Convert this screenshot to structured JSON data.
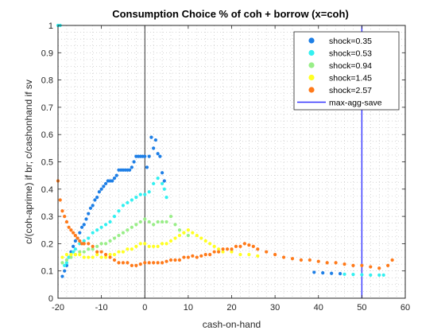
{
  "chart_data": {
    "type": "scatter",
    "title": "Consumption Choice % of coh + borrow (x=coh)",
    "xlabel": "cash-on-hand",
    "ylabel": "c/(coh-aprime) if br; c/cashonhand if sv",
    "xlim": [
      -20,
      60
    ],
    "ylim": [
      0,
      1
    ],
    "xticks": [
      "-20",
      "-10",
      "0",
      "10",
      "20",
      "30",
      "40",
      "50",
      "60"
    ],
    "yticks": [
      "0",
      "0.1",
      "0.2",
      "0.3",
      "0.4",
      "0.5",
      "0.6",
      "0.7",
      "0.8",
      "0.9",
      "1"
    ],
    "grid": "minor dotted",
    "legend_position": "top-right",
    "vertical_lines": [
      {
        "x": 0,
        "color": "#000000",
        "label": ""
      },
      {
        "x": 50,
        "color": "#3333ff",
        "label": "max-agg-save"
      }
    ],
    "series": [
      {
        "name": "shock=0.35",
        "color": "#1e7fe6",
        "points": [
          [
            -19.0,
            0.08
          ],
          [
            -18.5,
            0.1
          ],
          [
            -18.0,
            0.12
          ],
          [
            -17.5,
            0.15
          ],
          [
            -17.0,
            0.17
          ],
          [
            -16.5,
            0.19
          ],
          [
            -16.0,
            0.21
          ],
          [
            -15.5,
            0.22
          ],
          [
            -15.0,
            0.24
          ],
          [
            -14.5,
            0.26
          ],
          [
            -14.0,
            0.27
          ],
          [
            -13.5,
            0.29
          ],
          [
            -13.0,
            0.31
          ],
          [
            -12.5,
            0.33
          ],
          [
            -12.0,
            0.34
          ],
          [
            -11.5,
            0.36
          ],
          [
            -11.0,
            0.37
          ],
          [
            -10.5,
            0.39
          ],
          [
            -10.0,
            0.4
          ],
          [
            -9.5,
            0.41
          ],
          [
            -9.0,
            0.42
          ],
          [
            -8.5,
            0.43
          ],
          [
            -8.0,
            0.43
          ],
          [
            -7.5,
            0.43
          ],
          [
            -7.0,
            0.44
          ],
          [
            -6.5,
            0.45
          ],
          [
            -6.0,
            0.47
          ],
          [
            -5.5,
            0.47
          ],
          [
            -5.0,
            0.47
          ],
          [
            -4.5,
            0.47
          ],
          [
            -4.0,
            0.47
          ],
          [
            -3.5,
            0.47
          ],
          [
            -3.0,
            0.48
          ],
          [
            -2.5,
            0.5
          ],
          [
            -2.0,
            0.52
          ],
          [
            -1.5,
            0.52
          ],
          [
            -1.0,
            0.52
          ],
          [
            -0.5,
            0.52
          ],
          [
            0.0,
            0.52
          ],
          [
            0.5,
            0.48
          ],
          [
            1.0,
            0.52
          ],
          [
            1.5,
            0.59
          ],
          [
            2.0,
            0.55
          ],
          [
            2.5,
            0.58
          ],
          [
            3.0,
            0.53
          ],
          [
            3.5,
            0.52
          ],
          [
            4.0,
            0.46
          ],
          [
            4.5,
            0.43
          ],
          [
            39.0,
            0.095
          ],
          [
            41.0,
            0.093
          ],
          [
            43.0,
            0.091
          ],
          [
            45.0,
            0.09
          ]
        ]
      },
      {
        "name": "shock=0.53",
        "color": "#33f0f0",
        "points": [
          [
            -20.0,
            1.0
          ],
          [
            -19.5,
            1.0
          ],
          [
            -18.5,
            0.12
          ],
          [
            -18.0,
            0.13
          ],
          [
            -17.5,
            0.15
          ],
          [
            -17.0,
            0.16
          ],
          [
            -16.5,
            0.17
          ],
          [
            -16.0,
            0.18
          ],
          [
            -15.0,
            0.2
          ],
          [
            -14.0,
            0.21
          ],
          [
            -13.0,
            0.22
          ],
          [
            -12.0,
            0.24
          ],
          [
            -11.0,
            0.25
          ],
          [
            -10.0,
            0.26
          ],
          [
            -9.0,
            0.27
          ],
          [
            -8.0,
            0.28
          ],
          [
            -7.0,
            0.3
          ],
          [
            -6.0,
            0.32
          ],
          [
            -5.0,
            0.34
          ],
          [
            -4.0,
            0.35
          ],
          [
            -3.0,
            0.36
          ],
          [
            -2.0,
            0.37
          ],
          [
            -1.0,
            0.38
          ],
          [
            0.0,
            0.38
          ],
          [
            1.0,
            0.39
          ],
          [
            2.0,
            0.42
          ],
          [
            3.0,
            0.44
          ],
          [
            4.0,
            0.42
          ],
          [
            4.5,
            0.4
          ],
          [
            5.0,
            0.37
          ],
          [
            46.0,
            0.088
          ],
          [
            48.0,
            0.087
          ],
          [
            50.0,
            0.086
          ],
          [
            52.0,
            0.085
          ],
          [
            54.0,
            0.085
          ],
          [
            55.0,
            0.085
          ]
        ]
      },
      {
        "name": "shock=0.94",
        "color": "#99ee88",
        "points": [
          [
            -19.0,
            0.13
          ],
          [
            -18.0,
            0.14
          ],
          [
            -17.0,
            0.15
          ],
          [
            -16.0,
            0.16
          ],
          [
            -15.0,
            0.17
          ],
          [
            -14.0,
            0.17
          ],
          [
            -13.0,
            0.18
          ],
          [
            -12.0,
            0.18
          ],
          [
            -11.0,
            0.19
          ],
          [
            -10.0,
            0.2
          ],
          [
            -9.0,
            0.2
          ],
          [
            -8.0,
            0.21
          ],
          [
            -7.0,
            0.22
          ],
          [
            -6.0,
            0.23
          ],
          [
            -5.0,
            0.24
          ],
          [
            -4.0,
            0.25
          ],
          [
            -3.0,
            0.26
          ],
          [
            -2.0,
            0.27
          ],
          [
            -1.0,
            0.28
          ],
          [
            0.0,
            0.29
          ],
          [
            1.0,
            0.28
          ],
          [
            2.0,
            0.27
          ],
          [
            3.0,
            0.28
          ],
          [
            4.0,
            0.28
          ],
          [
            5.0,
            0.28
          ],
          [
            6.0,
            0.3
          ],
          [
            7.0,
            0.27
          ],
          [
            8.0,
            0.25
          ],
          [
            9.0,
            0.24
          ],
          [
            10.0,
            0.23
          ]
        ]
      },
      {
        "name": "shock=1.45",
        "color": "#ffff22",
        "points": [
          [
            -19.0,
            0.15
          ],
          [
            -18.0,
            0.16
          ],
          [
            -17.0,
            0.16
          ],
          [
            -16.0,
            0.16
          ],
          [
            -15.0,
            0.16
          ],
          [
            -14.0,
            0.15
          ],
          [
            -13.0,
            0.15
          ],
          [
            -12.0,
            0.15
          ],
          [
            -11.0,
            0.16
          ],
          [
            -10.0,
            0.15
          ],
          [
            -9.0,
            0.15
          ],
          [
            -8.0,
            0.16
          ],
          [
            -7.0,
            0.16
          ],
          [
            -6.0,
            0.17
          ],
          [
            -5.0,
            0.17
          ],
          [
            -4.0,
            0.18
          ],
          [
            -3.0,
            0.18
          ],
          [
            -2.0,
            0.19
          ],
          [
            -1.0,
            0.2
          ],
          [
            0.0,
            0.2
          ],
          [
            1.0,
            0.19
          ],
          [
            2.0,
            0.19
          ],
          [
            3.0,
            0.19
          ],
          [
            4.0,
            0.2
          ],
          [
            5.0,
            0.2
          ],
          [
            6.0,
            0.21
          ],
          [
            7.0,
            0.22
          ],
          [
            8.0,
            0.23
          ],
          [
            9.0,
            0.24
          ],
          [
            10.0,
            0.25
          ],
          [
            11.0,
            0.24
          ],
          [
            12.0,
            0.23
          ],
          [
            13.0,
            0.22
          ],
          [
            14.0,
            0.21
          ],
          [
            15.0,
            0.2
          ],
          [
            16.0,
            0.19
          ],
          [
            17.0,
            0.18
          ],
          [
            18.0,
            0.17
          ],
          [
            20.0,
            0.17
          ],
          [
            22.0,
            0.16
          ],
          [
            24.0,
            0.16
          ],
          [
            26.0,
            0.155
          ]
        ]
      },
      {
        "name": "shock=2.57",
        "color": "#ff7a1a",
        "points": [
          [
            -20.0,
            0.43
          ],
          [
            -19.5,
            0.36
          ],
          [
            -19.0,
            0.32
          ],
          [
            -18.5,
            0.3
          ],
          [
            -18.0,
            0.28
          ],
          [
            -17.5,
            0.26
          ],
          [
            -17.0,
            0.25
          ],
          [
            -16.5,
            0.24
          ],
          [
            -16.0,
            0.23
          ],
          [
            -15.5,
            0.22
          ],
          [
            -15.0,
            0.21
          ],
          [
            -14.5,
            0.2
          ],
          [
            -14.0,
            0.2
          ],
          [
            -13.0,
            0.2
          ],
          [
            -12.0,
            0.19
          ],
          [
            -11.0,
            0.17
          ],
          [
            -10.0,
            0.17
          ],
          [
            -9.0,
            0.16
          ],
          [
            -8.0,
            0.15
          ],
          [
            -7.0,
            0.14
          ],
          [
            -6.0,
            0.13
          ],
          [
            -5.0,
            0.13
          ],
          [
            -4.0,
            0.13
          ],
          [
            -3.0,
            0.12
          ],
          [
            -2.0,
            0.12
          ],
          [
            -1.0,
            0.125
          ],
          [
            0.0,
            0.13
          ],
          [
            1.0,
            0.13
          ],
          [
            2.0,
            0.13
          ],
          [
            3.0,
            0.13
          ],
          [
            4.0,
            0.13
          ],
          [
            5.0,
            0.135
          ],
          [
            6.0,
            0.14
          ],
          [
            7.0,
            0.14
          ],
          [
            8.0,
            0.14
          ],
          [
            9.0,
            0.15
          ],
          [
            10.0,
            0.15
          ],
          [
            11.0,
            0.155
          ],
          [
            12.0,
            0.15
          ],
          [
            13.0,
            0.155
          ],
          [
            14.0,
            0.16
          ],
          [
            15.0,
            0.16
          ],
          [
            16.0,
            0.17
          ],
          [
            17.0,
            0.17
          ],
          [
            18.0,
            0.18
          ],
          [
            19.0,
            0.18
          ],
          [
            20.0,
            0.18
          ],
          [
            21.0,
            0.19
          ],
          [
            22.0,
            0.19
          ],
          [
            23.0,
            0.2
          ],
          [
            24.0,
            0.195
          ],
          [
            25.0,
            0.19
          ],
          [
            26.0,
            0.18
          ],
          [
            28.0,
            0.17
          ],
          [
            30.0,
            0.16
          ],
          [
            32.0,
            0.15
          ],
          [
            34.0,
            0.145
          ],
          [
            36.0,
            0.14
          ],
          [
            38.0,
            0.14
          ],
          [
            40.0,
            0.135
          ],
          [
            42.0,
            0.13
          ],
          [
            44.0,
            0.13
          ],
          [
            46.0,
            0.125
          ],
          [
            48.0,
            0.12
          ],
          [
            50.0,
            0.12
          ],
          [
            52.0,
            0.115
          ],
          [
            54.0,
            0.11
          ],
          [
            56.0,
            0.12
          ],
          [
            57.0,
            0.14
          ]
        ]
      }
    ],
    "legend": [
      {
        "label": "shock=0.35",
        "color": "#1e7fe6",
        "kind": "marker"
      },
      {
        "label": "shock=0.53",
        "color": "#33f0f0",
        "kind": "marker"
      },
      {
        "label": "shock=0.94",
        "color": "#99ee88",
        "kind": "marker"
      },
      {
        "label": "shock=1.45",
        "color": "#ffff22",
        "kind": "marker"
      },
      {
        "label": "shock=2.57",
        "color": "#ff7a1a",
        "kind": "marker"
      },
      {
        "label": "max-agg-save",
        "color": "#3333ff",
        "kind": "line"
      }
    ]
  }
}
